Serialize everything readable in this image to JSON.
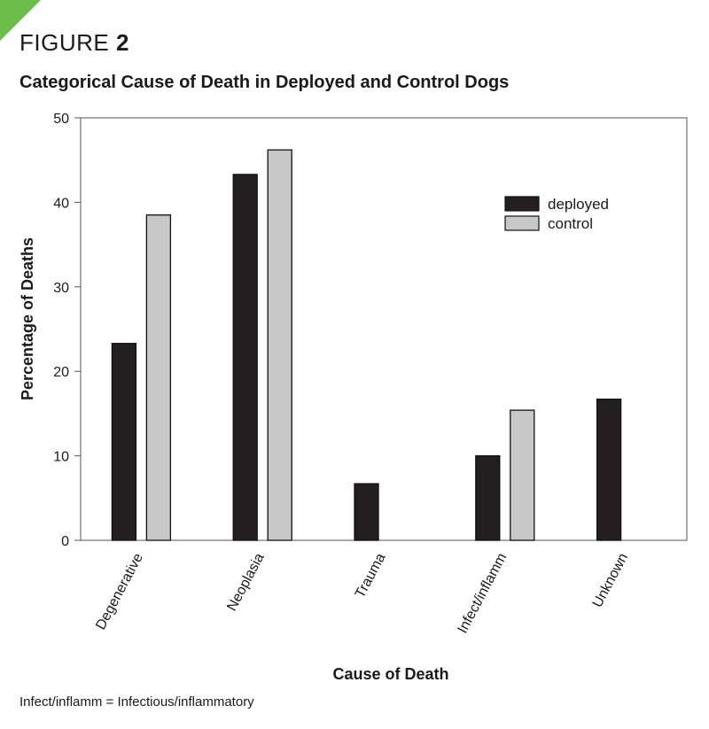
{
  "header": {
    "figure_word": "FIGURE",
    "figure_number": "2"
  },
  "chart_data": {
    "type": "bar",
    "title": "Categorical Cause of Death in Deployed and Control Dogs",
    "xlabel": "Cause of Death",
    "ylabel": "Percentage of Deaths",
    "ylim": [
      0,
      50
    ],
    "yticks": [
      0,
      10,
      20,
      30,
      40,
      50
    ],
    "categories": [
      "Degenerative",
      "Neoplasia",
      "Trauma",
      "Infect/inflamm",
      "Unknown"
    ],
    "series": [
      {
        "name": "deployed",
        "color": "#231f20",
        "values": [
          23.3,
          43.3,
          6.7,
          10.0,
          16.7
        ]
      },
      {
        "name": "control",
        "color": "#c8c8c8",
        "values": [
          38.5,
          46.2,
          0,
          15.4,
          0
        ]
      }
    ],
    "legend_position": "top-right",
    "grid": false
  },
  "footnote": "Infect/inflamm = Infectious/inflammatory"
}
